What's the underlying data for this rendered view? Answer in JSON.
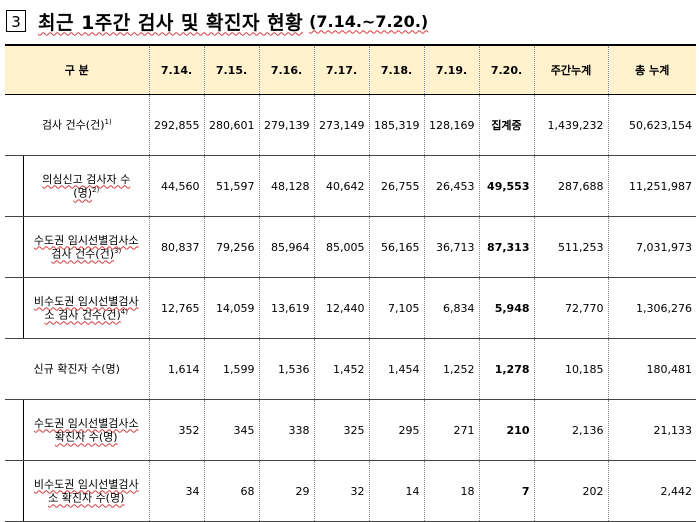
{
  "title": {
    "number": "3",
    "main": "최근 1주간 검사 및 확진자 현황",
    "period": "(7.14.~7.20.)"
  },
  "table": {
    "headers": [
      "구 분",
      "7.14.",
      "7.15.",
      "7.16.",
      "7.17.",
      "7.18.",
      "7.19.",
      "7.20.",
      "주간누계",
      "총 누계"
    ],
    "rows": [
      {
        "label": "검사 건수(건)",
        "sup": "1)",
        "sub": false,
        "values": [
          "292,855",
          "280,601",
          "279,139",
          "273,149",
          "185,319",
          "128,169",
          "집계중",
          "1,439,232",
          "50,623,154"
        ]
      },
      {
        "label": "의심신고 검사자 수(명)",
        "sup": "2)",
        "sub": true,
        "values": [
          "44,560",
          "51,597",
          "48,128",
          "40,642",
          "26,755",
          "26,453",
          "49,553",
          "287,688",
          "11,251,987"
        ]
      },
      {
        "label": "수도권 임시선별검사소 검사 건수(건)",
        "sup": "3)",
        "sub": true,
        "values": [
          "80,837",
          "79,256",
          "85,964",
          "85,005",
          "56,165",
          "36,713",
          "87,313",
          "511,253",
          "7,031,973"
        ]
      },
      {
        "label": "비수도권 임시선별검사소 검사 건수(건)",
        "sup": "4)",
        "sub": true,
        "values": [
          "12,765",
          "14,059",
          "13,619",
          "12,440",
          "7,105",
          "6,834",
          "5,948",
          "72,770",
          "1,306,276"
        ]
      },
      {
        "label": "신규 확진자 수(명)",
        "sup": "",
        "sub": false,
        "values": [
          "1,614",
          "1,599",
          "1,536",
          "1,452",
          "1,454",
          "1,252",
          "1,278",
          "10,185",
          "180,481"
        ]
      },
      {
        "label": "수도권 임시선별검사소 확진자 수(명)",
        "sup": "",
        "sub": true,
        "values": [
          "352",
          "345",
          "338",
          "325",
          "295",
          "271",
          "210",
          "2,136",
          "21,133"
        ]
      },
      {
        "label": "비수도권 임시선별검사소 확진자 수(명)",
        "sup": "",
        "sub": true,
        "values": [
          "34",
          "68",
          "29",
          "32",
          "14",
          "18",
          "7",
          "202",
          "2,442"
        ]
      }
    ]
  }
}
